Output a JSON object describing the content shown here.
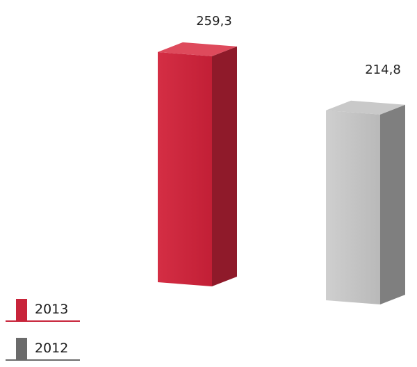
{
  "chart_data": {
    "type": "bar",
    "categories": [
      "2013",
      "2012"
    ],
    "values": [
      259.3,
      214.8
    ],
    "value_labels": [
      "259,3",
      "214,8"
    ],
    "colors": [
      "#c8243a",
      "#a6a6a6"
    ]
  },
  "legend": {
    "items": [
      {
        "label": "2013",
        "color": "#c8243a"
      },
      {
        "label": "2012",
        "color": "#6b6b6b"
      }
    ]
  }
}
